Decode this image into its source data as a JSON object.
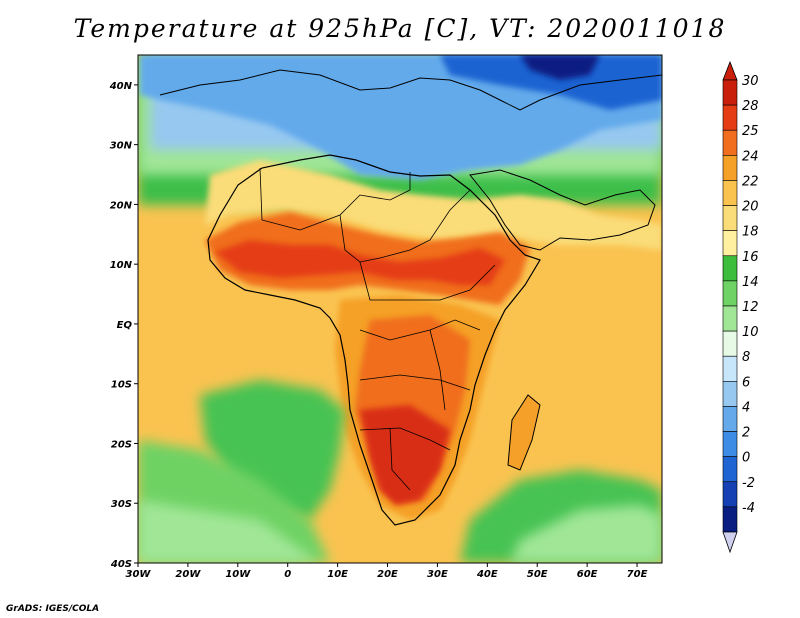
{
  "title": "Temperature at 925hPa [C], VT: 2020011018",
  "credit": "GrADS: IGES/COLA",
  "map": {
    "projection": "latlon",
    "lon_range": [
      -30,
      75
    ],
    "lat_range": [
      -40,
      45
    ],
    "lon_labels": [
      "30W",
      "20W",
      "10W",
      "0",
      "10E",
      "20E",
      "30E",
      "40E",
      "50E",
      "60E",
      "70E"
    ],
    "lat_labels": [
      "40N",
      "30N",
      "20N",
      "10N",
      "EQ",
      "10S",
      "20S",
      "30S",
      "40S"
    ],
    "regions": [
      {
        "name": "cold-north-mediterranean",
        "color": "#6aa5ee"
      },
      {
        "name": "very-cold-east",
        "color": "#1c3fc2"
      },
      {
        "name": "ocean-warm",
        "color": "#f9d57a"
      },
      {
        "name": "atlantic-cool-south",
        "color": "#46c352"
      },
      {
        "name": "sahel-hot",
        "color": "#e5461c"
      },
      {
        "name": "kalahari-hot",
        "color": "#d92f14"
      }
    ]
  },
  "colorbar": {
    "levels": [
      {
        "label": "30",
        "color": "#c81e0a"
      },
      {
        "label": "28",
        "color": "#e53c14"
      },
      {
        "label": "25",
        "color": "#f06e1e"
      },
      {
        "label": "24",
        "color": "#f5a028"
      },
      {
        "label": "22",
        "color": "#fac350"
      },
      {
        "label": "20",
        "color": "#fadc78"
      },
      {
        "label": "18",
        "color": "#fff0a0"
      },
      {
        "label": "16",
        "color": "#3cbe3c"
      },
      {
        "label": "14",
        "color": "#6ed264"
      },
      {
        "label": "12",
        "color": "#a0e696"
      },
      {
        "label": "10",
        "color": "#e6fae6"
      },
      {
        "label": "8",
        "color": "#c8e6fa"
      },
      {
        "label": "6",
        "color": "#96c8f0"
      },
      {
        "label": "4",
        "color": "#64aaeb"
      },
      {
        "label": "2",
        "color": "#3c8ce6"
      },
      {
        "label": "0",
        "color": "#1e64d2"
      },
      {
        "label": "-2",
        "color": "#1440b4"
      },
      {
        "label": "-4",
        "color": "#0a1e82"
      }
    ],
    "top_arrow_color": "#c81e0a",
    "bottom_arrow_color": "#d0d0f0"
  }
}
